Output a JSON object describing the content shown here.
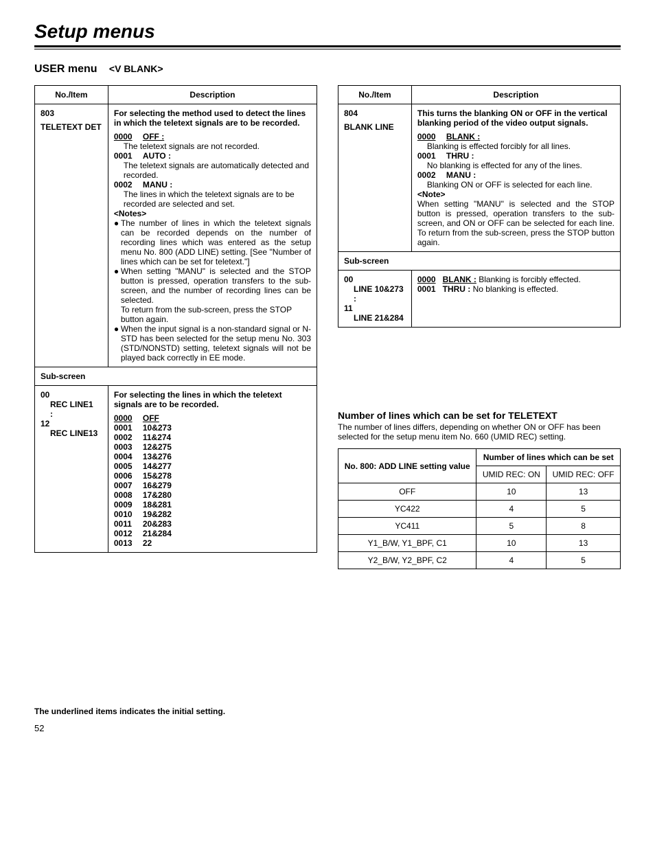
{
  "page": {
    "title": "Setup menus",
    "section_main": "USER menu",
    "section_sub": "<V BLANK>",
    "footnote": "The underlined items indicates the initial setting.",
    "page_number": "52"
  },
  "left_table": {
    "headers": {
      "col1": "No./Item",
      "col2": "Description"
    },
    "row1": {
      "item_no": "803",
      "item_name": "TELETEXT DET",
      "intro": "For selecting the method used to detect the lines in which the teletext signals are to be recorded.",
      "opt0_code": "0000",
      "opt0_label": "OFF :",
      "opt0_desc": "The teletext signals are not recorded.",
      "opt1_code": "0001",
      "opt1_label": "AUTO :",
      "opt1_desc": "The teletext signals are automatically detected and recorded.",
      "opt2_code": "0002",
      "opt2_label": "MANU :",
      "opt2_desc": "The lines in which the teletext signals are to be recorded are selected and set.",
      "notes_label": "<Notes>",
      "note1": "The number of lines in which the teletext signals can be recorded depends on the number of recording lines which was entered as the setup menu No. 800 (ADD LINE) setting. [See \"Number of lines which can be set for teletext.\"]",
      "note2a": "When setting \"MANU\" is selected and the STOP button is pressed, operation transfers to the sub-screen, and the number of recording lines can be selected.",
      "note2b": "To return from the sub-screen, press the STOP button again.",
      "note3": "When the input signal is a non-standard signal or N-STD has been selected for the setup menu No. 303 (STD/NONSTD) setting, teletext signals will not be played back correctly in EE mode."
    },
    "subscreen_label": "Sub-screen",
    "row2": {
      "item_lines": [
        "00",
        "REC LINE1",
        ":",
        "12",
        "REC LINE13"
      ],
      "intro": "For selecting the lines in which the teletext signals are to be recorded.",
      "options": [
        {
          "code": "0000",
          "label": "OFF"
        },
        {
          "code": "0001",
          "label": "10&273"
        },
        {
          "code": "0002",
          "label": "11&274"
        },
        {
          "code": "0003",
          "label": "12&275"
        },
        {
          "code": "0004",
          "label": "13&276"
        },
        {
          "code": "0005",
          "label": "14&277"
        },
        {
          "code": "0006",
          "label": "15&278"
        },
        {
          "code": "0007",
          "label": "16&279"
        },
        {
          "code": "0008",
          "label": "17&280"
        },
        {
          "code": "0009",
          "label": "18&281"
        },
        {
          "code": "0010",
          "label": "19&282"
        },
        {
          "code": "0011",
          "label": "20&283"
        },
        {
          "code": "0012",
          "label": "21&284"
        },
        {
          "code": "0013",
          "label": "22"
        }
      ]
    }
  },
  "right_table": {
    "headers": {
      "col1": "No./Item",
      "col2": "Description"
    },
    "row1": {
      "item_no": "804",
      "item_name": "BLANK LINE",
      "intro": "This turns the blanking ON or OFF in the vertical blanking period of the video output signals.",
      "opt0_code": "0000",
      "opt0_label": "BLANK :",
      "opt0_desc": "Blanking is effected forcibly for all lines.",
      "opt1_code": "0001",
      "opt1_label": "THRU :",
      "opt1_desc": "No blanking is effected for any of the lines.",
      "opt2_code": "0002",
      "opt2_label": "MANU :",
      "opt2_desc": "Blanking ON or OFF is selected for each line.",
      "note_label": "<Note>",
      "note_body": "When setting \"MANU\" is selected and the STOP button is pressed, operation transfers to the sub-screen, and ON or OFF can be selected for each line. To return from the sub-screen, press the STOP button again."
    },
    "subscreen_label": "Sub-screen",
    "row2": {
      "item_lines": [
        "00",
        "LINE 10&273",
        ":",
        "11",
        "LINE 21&284"
      ],
      "d_code0": "0000",
      "d_label0": "BLANK :",
      "d_desc0": "Blanking is forcibly effected.",
      "d_code1": "0001",
      "d_label1": "THRU :",
      "d_desc1": "No blanking is effected."
    }
  },
  "teletext": {
    "heading": "Number of lines which can be set for TELETEXT",
    "note": "The number of lines differs, depending on whether ON or OFF has been selected for the setup menu item No. 660 (UMID REC) setting.",
    "header1": "No. 800: ADD LINE setting value",
    "header2": "Number of lines which can be set",
    "sub1": "UMID REC: ON",
    "sub2": "UMID REC: OFF",
    "rows": [
      {
        "k": "OFF",
        "on": "10",
        "off": "13"
      },
      {
        "k": "YC422",
        "on": "4",
        "off": "5"
      },
      {
        "k": "YC411",
        "on": "5",
        "off": "8"
      },
      {
        "k": "Y1_B/W, Y1_BPF, C1",
        "on": "10",
        "off": "13"
      },
      {
        "k": "Y2_B/W, Y2_BPF, C2",
        "on": "4",
        "off": "5"
      }
    ]
  }
}
